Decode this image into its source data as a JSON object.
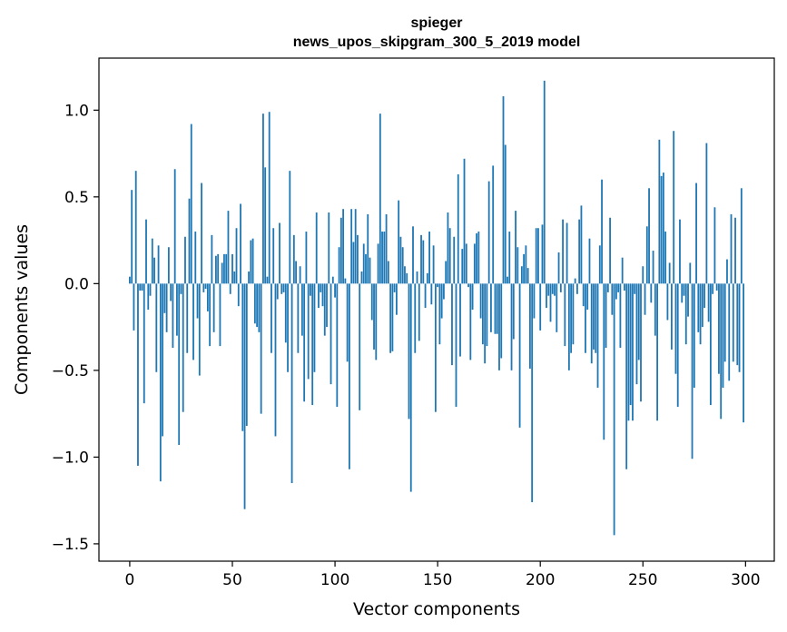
{
  "chart_data": {
    "type": "bar",
    "title_line1": "spieger",
    "title_line2": "news_upos_skipgram_300_5_2019 model",
    "xlabel": "Vector components",
    "ylabel": "Components values",
    "xlim": [
      -15,
      314
    ],
    "ylim": [
      -1.6,
      1.3
    ],
    "xticks": [
      0,
      50,
      100,
      150,
      200,
      250,
      300
    ],
    "xtick_labels": [
      "0",
      "50",
      "100",
      "150",
      "200",
      "250",
      "300"
    ],
    "yticks": [
      1.0,
      0.5,
      0.0,
      -0.5,
      -1.0,
      -1.5
    ],
    "ytick_labels": [
      "1.0",
      "0.5",
      "0.0",
      "−0.5",
      "−1.0",
      "−1.5"
    ],
    "bar_color": "#1f77b4",
    "values": [
      0.04,
      0.54,
      -0.27,
      0.65,
      -1.05,
      -0.04,
      -0.04,
      -0.69,
      0.37,
      -0.15,
      -0.07,
      0.26,
      0.15,
      -0.51,
      0.22,
      -1.14,
      -0.88,
      -0.17,
      -0.28,
      0.21,
      -0.1,
      -0.37,
      0.66,
      -0.3,
      -0.93,
      -0.06,
      -0.74,
      0.27,
      -0.4,
      0.49,
      0.92,
      -0.44,
      0.3,
      -0.2,
      -0.53,
      0.58,
      -0.05,
      -0.03,
      -0.16,
      -0.36,
      0.28,
      -0.28,
      0.16,
      0.17,
      -0.36,
      0.12,
      0.17,
      0.17,
      0.42,
      -0.06,
      0.17,
      0.07,
      0.32,
      -0.13,
      0.46,
      -0.85,
      -1.3,
      -0.82,
      0.07,
      0.25,
      0.26,
      -0.23,
      -0.25,
      -0.28,
      -0.75,
      0.98,
      0.67,
      0.04,
      0.99,
      -0.4,
      0.32,
      -0.88,
      -0.09,
      0.35,
      -0.06,
      -0.05,
      -0.34,
      -0.51,
      0.65,
      -1.15,
      0.28,
      0.13,
      -0.4,
      0.1,
      -0.3,
      -0.68,
      0.3,
      -0.55,
      -0.07,
      -0.7,
      -0.51,
      0.41,
      -0.14,
      -0.05,
      -0.13,
      -0.3,
      -0.25,
      0.41,
      -0.58,
      0.04,
      -0.08,
      -0.71,
      0.21,
      0.38,
      0.43,
      0.03,
      -0.45,
      -1.07,
      0.43,
      0.24,
      0.43,
      0.28,
      -0.73,
      0.07,
      0.23,
      0.17,
      0.4,
      0.15,
      -0.21,
      -0.38,
      -0.44,
      0.23,
      0.98,
      0.3,
      0.3,
      0.4,
      0.13,
      -0.4,
      -0.39,
      -0.05,
      -0.18,
      0.48,
      0.27,
      0.21,
      0.1,
      0.06,
      -0.78,
      -1.2,
      0.33,
      -0.4,
      0.07,
      -0.33,
      0.28,
      0.25,
      -0.14,
      0.06,
      0.3,
      -0.12,
      0.22,
      -0.74,
      -0.02,
      -0.35,
      -0.2,
      -0.09,
      0.13,
      0.41,
      0.32,
      -0.47,
      0.27,
      -0.71,
      0.63,
      -0.42,
      0.2,
      0.72,
      0.23,
      -0.02,
      -0.44,
      -0.15,
      0.23,
      0.29,
      0.3,
      -0.2,
      -0.35,
      -0.46,
      -0.36,
      0.59,
      -0.28,
      0.68,
      -0.29,
      -0.29,
      -0.5,
      -0.43,
      1.08,
      0.8,
      0.04,
      0.3,
      -0.5,
      -0.32,
      0.42,
      0.21,
      -0.83,
      0.1,
      0.17,
      0.22,
      0.09,
      -0.49,
      -1.26,
      -0.2,
      0.32,
      0.32,
      -0.27,
      0.34,
      1.17,
      -0.14,
      -0.07,
      -0.22,
      -0.06,
      -0.07,
      -0.28,
      0.18,
      -0.05,
      0.37,
      -0.36,
      0.35,
      -0.5,
      -0.4,
      -0.35,
      0.03,
      -0.06,
      0.37,
      0.45,
      -0.13,
      -0.4,
      -0.15,
      0.26,
      -0.46,
      -0.38,
      -0.4,
      -0.6,
      0.22,
      0.6,
      -0.9,
      -0.37,
      -0.05,
      0.38,
      -0.18,
      -1.45,
      -0.09,
      -0.05,
      -0.37,
      0.15,
      -0.04,
      -1.07,
      -0.79,
      -0.7,
      -0.79,
      -0.06,
      -0.58,
      -0.44,
      -0.68,
      0.1,
      -0.18,
      0.33,
      0.55,
      -0.11,
      0.19,
      -0.3,
      -0.79,
      0.83,
      0.62,
      0.64,
      0.3,
      -0.21,
      0.12,
      -0.38,
      0.88,
      -0.52,
      -0.71,
      0.37,
      -0.11,
      -0.07,
      -0.35,
      -0.19,
      0.12,
      -1.01,
      -0.6,
      0.58,
      -0.28,
      -0.35,
      -0.25,
      -0.14,
      0.81,
      -0.22,
      -0.7,
      -0.06,
      0.44,
      -0.04,
      -0.52,
      -0.78,
      -0.6,
      -0.45,
      0.14,
      -0.56,
      0.4,
      -0.45,
      0.38,
      -0.47,
      -0.51,
      0.55,
      -0.8
    ]
  }
}
